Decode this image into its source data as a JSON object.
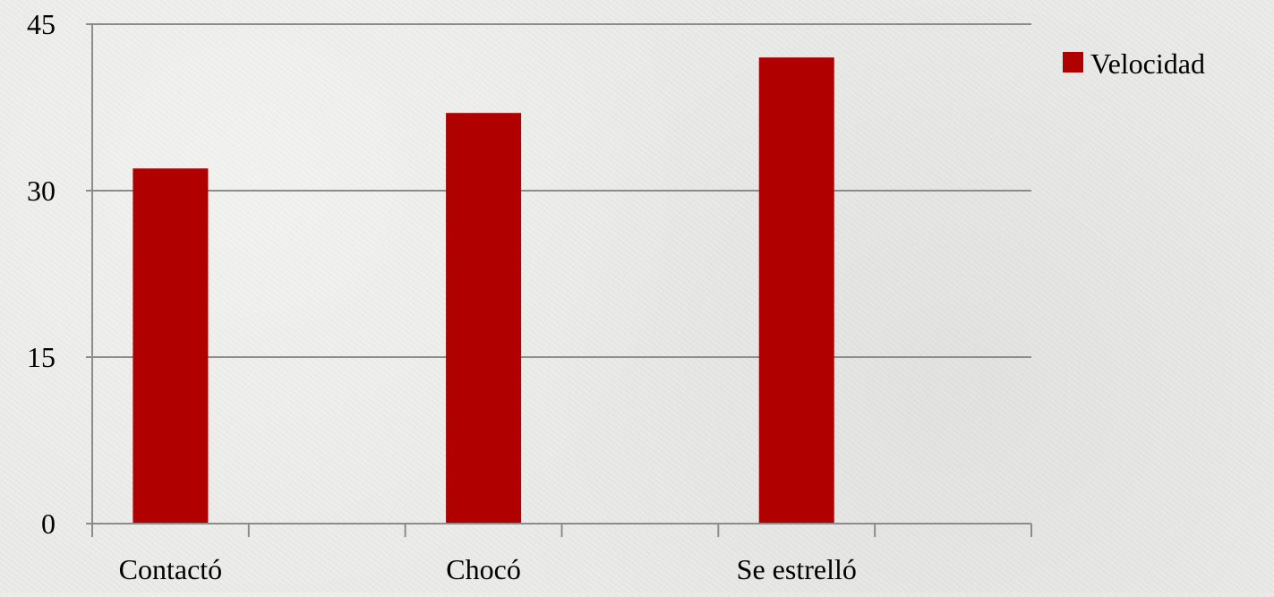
{
  "chart_data": {
    "type": "bar",
    "categories": [
      "Contactó",
      "Chocó",
      "Se estrelló"
    ],
    "series": [
      {
        "name": "Velocidad",
        "values": [
          32,
          37,
          42
        ],
        "color": "#b00000"
      }
    ],
    "ylim": [
      0,
      45
    ],
    "yticks": [
      0,
      15,
      30,
      45
    ],
    "grid": true,
    "legend": "right",
    "title": "",
    "xlabel": "",
    "ylabel": ""
  }
}
